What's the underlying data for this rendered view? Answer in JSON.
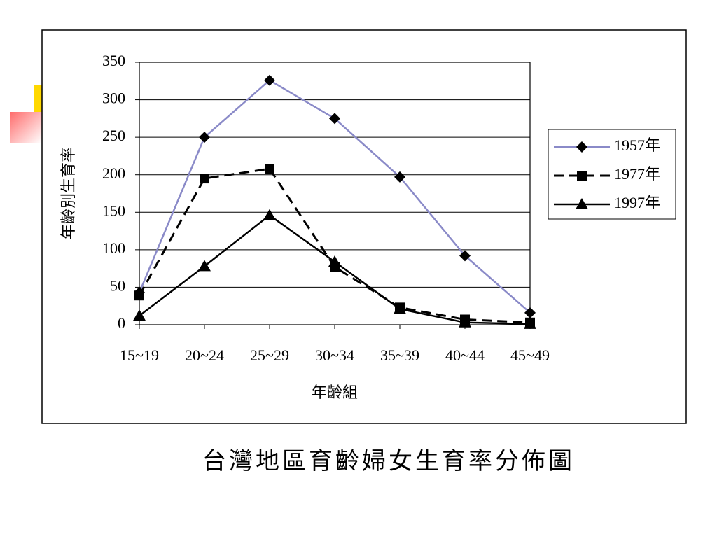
{
  "chart_data": {
    "type": "line",
    "caption": "台灣地區育齡婦女生育率分佈圖",
    "ylabel": "年齡別生育率",
    "xlabel": "年齡組",
    "categories": [
      "15~19",
      "20~24",
      "25~29",
      "30~34",
      "35~39",
      "40~44",
      "45~49"
    ],
    "series": [
      {
        "name": "1957年",
        "color": "#8a8ac8",
        "marker": "diamond",
        "line_style": "solid",
        "values": [
          43,
          250,
          326,
          275,
          197,
          92,
          16
        ]
      },
      {
        "name": "1977年",
        "color": "#000000",
        "marker": "square",
        "line_style": "dashed",
        "values": [
          39,
          195,
          208,
          77,
          23,
          7,
          3
        ]
      },
      {
        "name": "1997年",
        "color": "#000000",
        "marker": "triangle",
        "line_style": "solid",
        "values": [
          12,
          78,
          146,
          84,
          21,
          3,
          1
        ]
      }
    ],
    "ylim": [
      0,
      350
    ],
    "yticks": [
      0,
      50,
      100,
      150,
      200,
      250,
      300,
      350
    ],
    "grid": true,
    "legend": "right"
  }
}
